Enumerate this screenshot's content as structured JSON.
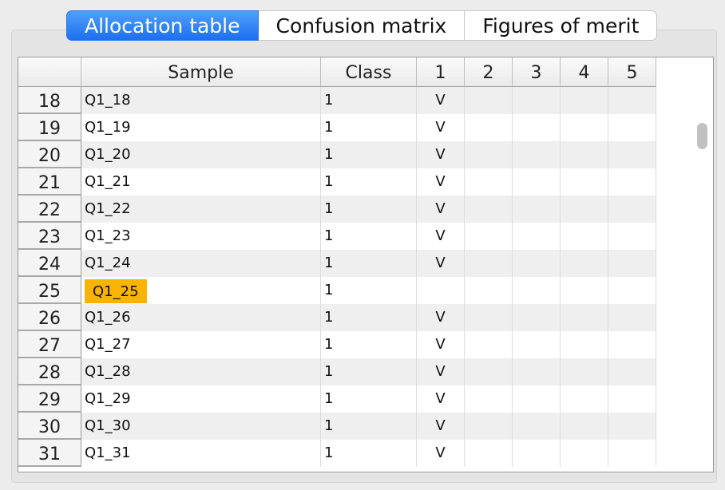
{
  "tabs": [
    {
      "label": "Allocation table",
      "active": true
    },
    {
      "label": "Confusion matrix",
      "active": false
    },
    {
      "label": "Figures of merit",
      "active": false
    }
  ],
  "table": {
    "headers": [
      "",
      "Sample",
      "Class",
      "1",
      "2",
      "3",
      "4",
      "5"
    ],
    "rows": [
      {
        "num": "18",
        "sample": "Q1_18",
        "class": "1",
        "c1": "V",
        "c2": "",
        "c3": "",
        "c4": "",
        "c5": ""
      },
      {
        "num": "19",
        "sample": "Q1_19",
        "class": "1",
        "c1": "V",
        "c2": "",
        "c3": "",
        "c4": "",
        "c5": ""
      },
      {
        "num": "20",
        "sample": "Q1_20",
        "class": "1",
        "c1": "V",
        "c2": "",
        "c3": "",
        "c4": "",
        "c5": ""
      },
      {
        "num": "21",
        "sample": "Q1_21",
        "class": "1",
        "c1": "V",
        "c2": "",
        "c3": "",
        "c4": "",
        "c5": ""
      },
      {
        "num": "22",
        "sample": "Q1_22",
        "class": "1",
        "c1": "V",
        "c2": "",
        "c3": "",
        "c4": "",
        "c5": ""
      },
      {
        "num": "23",
        "sample": "Q1_23",
        "class": "1",
        "c1": "V",
        "c2": "",
        "c3": "",
        "c4": "",
        "c5": ""
      },
      {
        "num": "24",
        "sample": "Q1_24",
        "class": "1",
        "c1": "V",
        "c2": "",
        "c3": "",
        "c4": "",
        "c5": ""
      },
      {
        "num": "25",
        "sample": "Q1_25",
        "class": "1",
        "c1": "",
        "c2": "",
        "c3": "",
        "c4": "",
        "c5": "",
        "highlight": true
      },
      {
        "num": "26",
        "sample": "Q1_26",
        "class": "1",
        "c1": "V",
        "c2": "",
        "c3": "",
        "c4": "",
        "c5": ""
      },
      {
        "num": "27",
        "sample": "Q1_27",
        "class": "1",
        "c1": "V",
        "c2": "",
        "c3": "",
        "c4": "",
        "c5": ""
      },
      {
        "num": "28",
        "sample": "Q1_28",
        "class": "1",
        "c1": "V",
        "c2": "",
        "c3": "",
        "c4": "",
        "c5": ""
      },
      {
        "num": "29",
        "sample": "Q1_29",
        "class": "1",
        "c1": "V",
        "c2": "",
        "c3": "",
        "c4": "",
        "c5": ""
      },
      {
        "num": "30",
        "sample": "Q1_30",
        "class": "1",
        "c1": "V",
        "c2": "",
        "c3": "",
        "c4": "",
        "c5": ""
      },
      {
        "num": "31",
        "sample": "Q1_31",
        "class": "1",
        "c1": "V",
        "c2": "",
        "c3": "",
        "c4": "",
        "c5": ""
      }
    ]
  },
  "colors": {
    "tab_active": "#1d6ff0",
    "highlight": "#f8b400",
    "row_alt": "#efefef"
  }
}
